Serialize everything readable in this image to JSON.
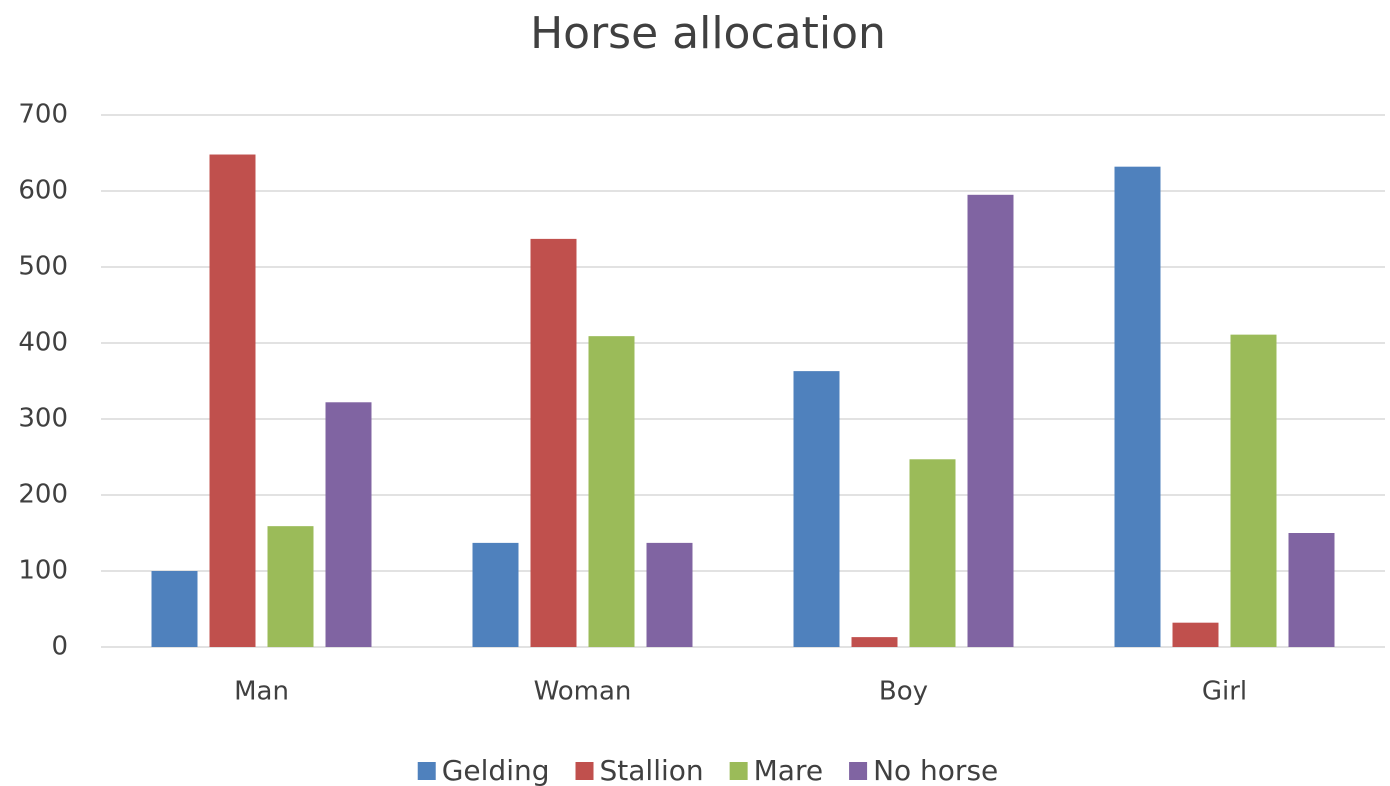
{
  "chart_data": {
    "type": "bar",
    "title": "Horse allocation",
    "categories": [
      "Man",
      "Woman",
      "Boy",
      "Girl"
    ],
    "series": [
      {
        "name": "Gelding",
        "color": "#4f81bd",
        "values": [
          100,
          137,
          363,
          632
        ]
      },
      {
        "name": "Stallion",
        "color": "#c0504d",
        "values": [
          648,
          537,
          13,
          32
        ]
      },
      {
        "name": "Mare",
        "color": "#9bbb59",
        "values": [
          159,
          409,
          247,
          411
        ]
      },
      {
        "name": "No horse",
        "color": "#8064a2",
        "values": [
          322,
          137,
          595,
          150
        ]
      }
    ],
    "ylim": [
      0,
      700
    ],
    "yticks": [
      0,
      100,
      200,
      300,
      400,
      500,
      600,
      700
    ],
    "grid": true,
    "legend": "bottom"
  }
}
